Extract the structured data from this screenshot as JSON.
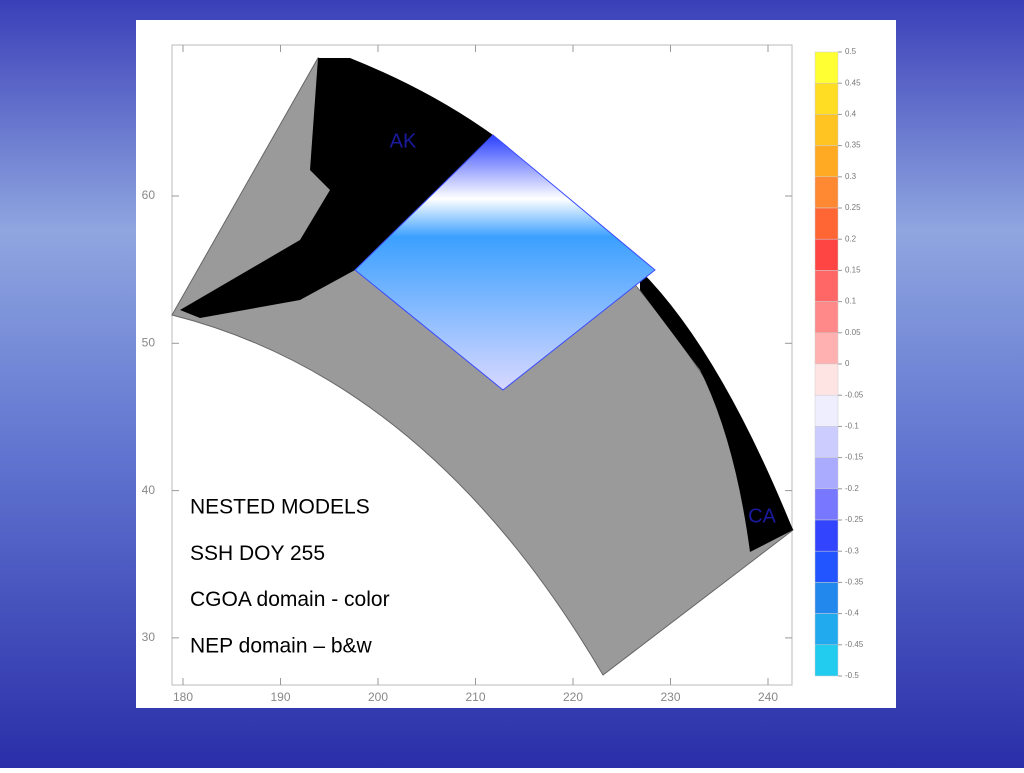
{
  "map": {
    "x_ticks": [
      180,
      190,
      200,
      210,
      220,
      230,
      240
    ],
    "y_ticks": [
      30,
      40,
      50,
      60
    ],
    "region_labels": [
      "AK",
      "CA"
    ],
    "colorbar": {
      "ticks": [
        0.5,
        0.45,
        0.4,
        0.35,
        0.3,
        0.25,
        0.2,
        0.15,
        0.1,
        0.05,
        0,
        -0.05,
        -0.1,
        -0.15,
        -0.2,
        -0.25,
        -0.3,
        -0.35,
        -0.4,
        -0.45,
        -0.5
      ],
      "colors": [
        "#ffff33",
        "#ffdd22",
        "#ffc422",
        "#ffaa22",
        "#ff8833",
        "#ff6633",
        "#ff4444",
        "#ff6666",
        "#ff8888",
        "#ffb0b0",
        "#ffe4e4",
        "#eeeeff",
        "#ccccff",
        "#aaaaff",
        "#7777ff",
        "#3344ff",
        "#2255ff",
        "#2288ee",
        "#22aaee",
        "#22ccee"
      ]
    }
  },
  "text_lines": [
    "NESTED MODELS",
    "SSH DOY 255",
    "CGOA domain - color",
    "NEP domain – b&w"
  ]
}
